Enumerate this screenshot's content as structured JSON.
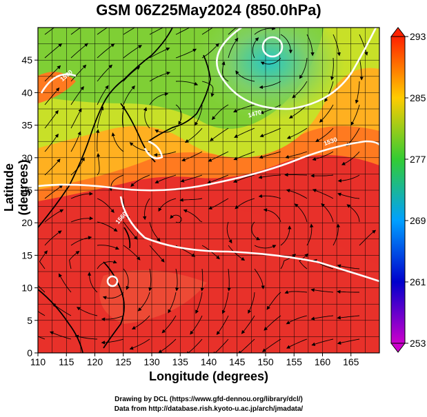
{
  "title": "GSM 06Z25May2024 (850.0hPa)",
  "x_axis": {
    "label": "Longitude (degrees)",
    "range": [
      110,
      170
    ],
    "ticks": [
      "110",
      "115",
      "120",
      "125",
      "130",
      "135",
      "140",
      "145",
      "150",
      "155",
      "160",
      "165"
    ]
  },
  "y_axis": {
    "label": "Latitude  (degrees)",
    "range": [
      0,
      50
    ],
    "ticks": [
      "0",
      "5",
      "10",
      "15",
      "20",
      "25",
      "30",
      "35",
      "40",
      "45"
    ]
  },
  "colorbar": {
    "ticks": [
      "253",
      "261",
      "269",
      "277",
      "285",
      "293"
    ],
    "range": [
      253,
      293
    ],
    "colors": [
      "#cc00cc",
      "#0000cc",
      "#00a0ff",
      "#33cc33",
      "#ffcc00",
      "#ff2200"
    ]
  },
  "contour_labels": [
    "1560",
    "1500",
    "1470",
    "1530"
  ],
  "credits": [
    "Drawing by DCL (https://www.gfd-dennou.org/library/dcl/)",
    "Data from http://database.rish.kyoto-u.ac.jp/arch/jmadata/"
  ],
  "colors": {
    "land_outline": "#000000",
    "contour": "#ffffff",
    "streamline": "#000000",
    "warm": "#e8302a",
    "mid": "#ff9a22",
    "cool": "#7ccf35",
    "cold": "#27c7c2"
  }
}
